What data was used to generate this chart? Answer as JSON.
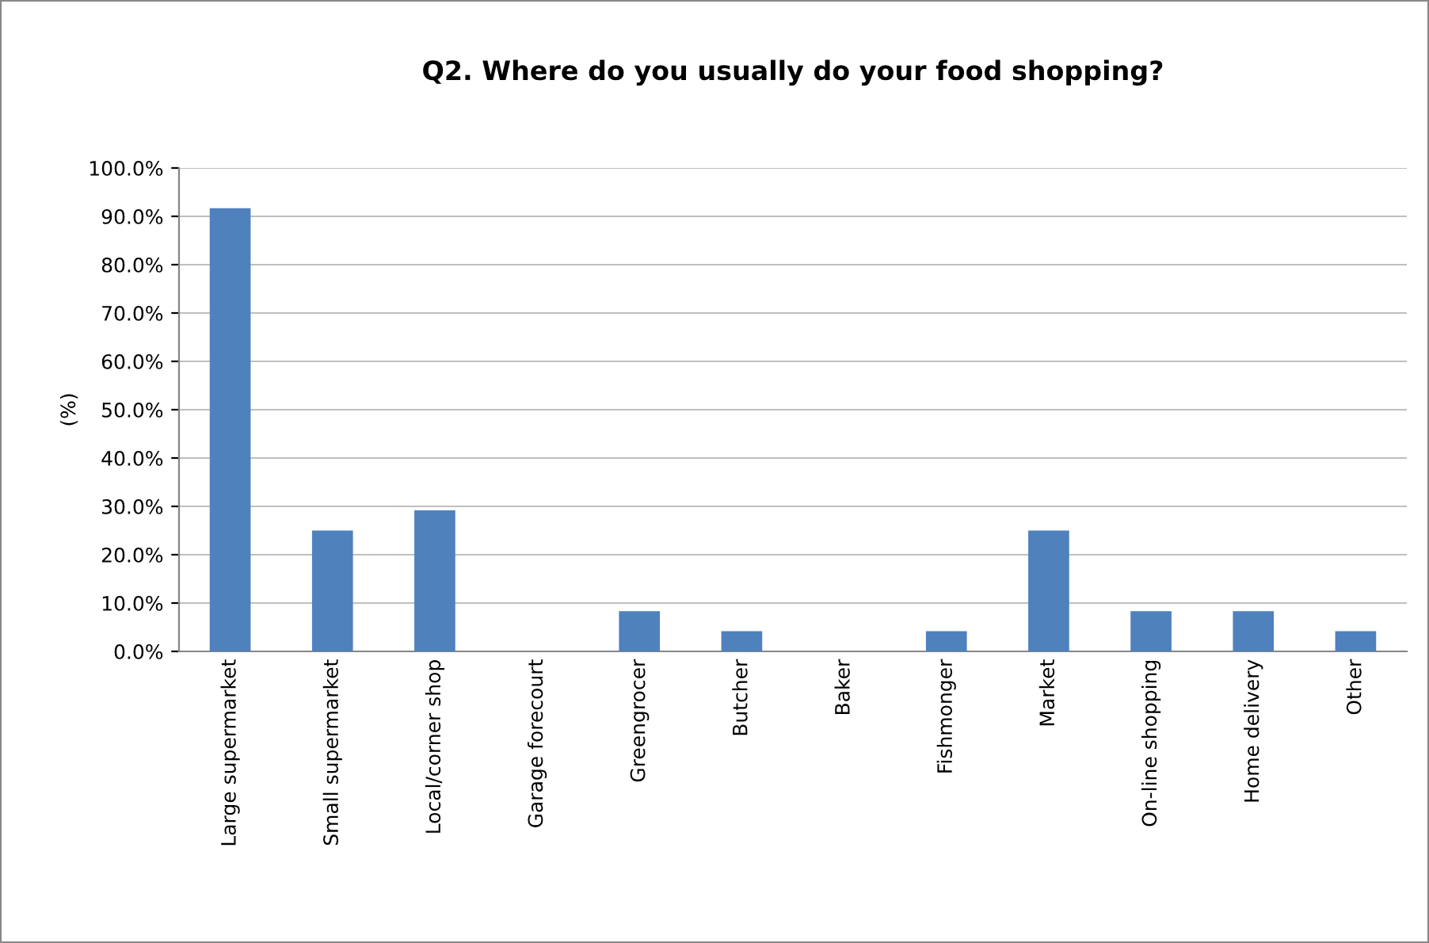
{
  "chart_data": {
    "type": "bar",
    "title": "Q2. Where do you usually do your food shopping?",
    "ylabel": "(%)",
    "categories": [
      "Large supermarket",
      "Small supermarket",
      "Local/corner shop",
      "Garage forecourt",
      "Greengrocer",
      "Butcher",
      "Baker",
      "Fishmonger",
      "Market",
      "On-line shopping",
      "Home delivery",
      "Other"
    ],
    "values": [
      91.7,
      25.0,
      29.2,
      0,
      8.3,
      4.2,
      0,
      4.2,
      25.0,
      8.3,
      8.3,
      4.2
    ],
    "color": "#4f81bd",
    "ylim": [
      0,
      100
    ],
    "yticks": [
      {
        "value": 0,
        "label": "0.0%"
      },
      {
        "value": 10,
        "label": "10.0%"
      },
      {
        "value": 20,
        "label": "20.0%"
      },
      {
        "value": 30,
        "label": "30.0%"
      },
      {
        "value": 40,
        "label": "40.0%"
      },
      {
        "value": 50,
        "label": "50.0%"
      },
      {
        "value": 60,
        "label": "60.0%"
      },
      {
        "value": 70,
        "label": "70.0%"
      },
      {
        "value": 80,
        "label": "80.0%"
      },
      {
        "value": 90,
        "label": "90.0%"
      },
      {
        "value": 100,
        "label": "100.0%"
      }
    ],
    "grid": "y"
  }
}
